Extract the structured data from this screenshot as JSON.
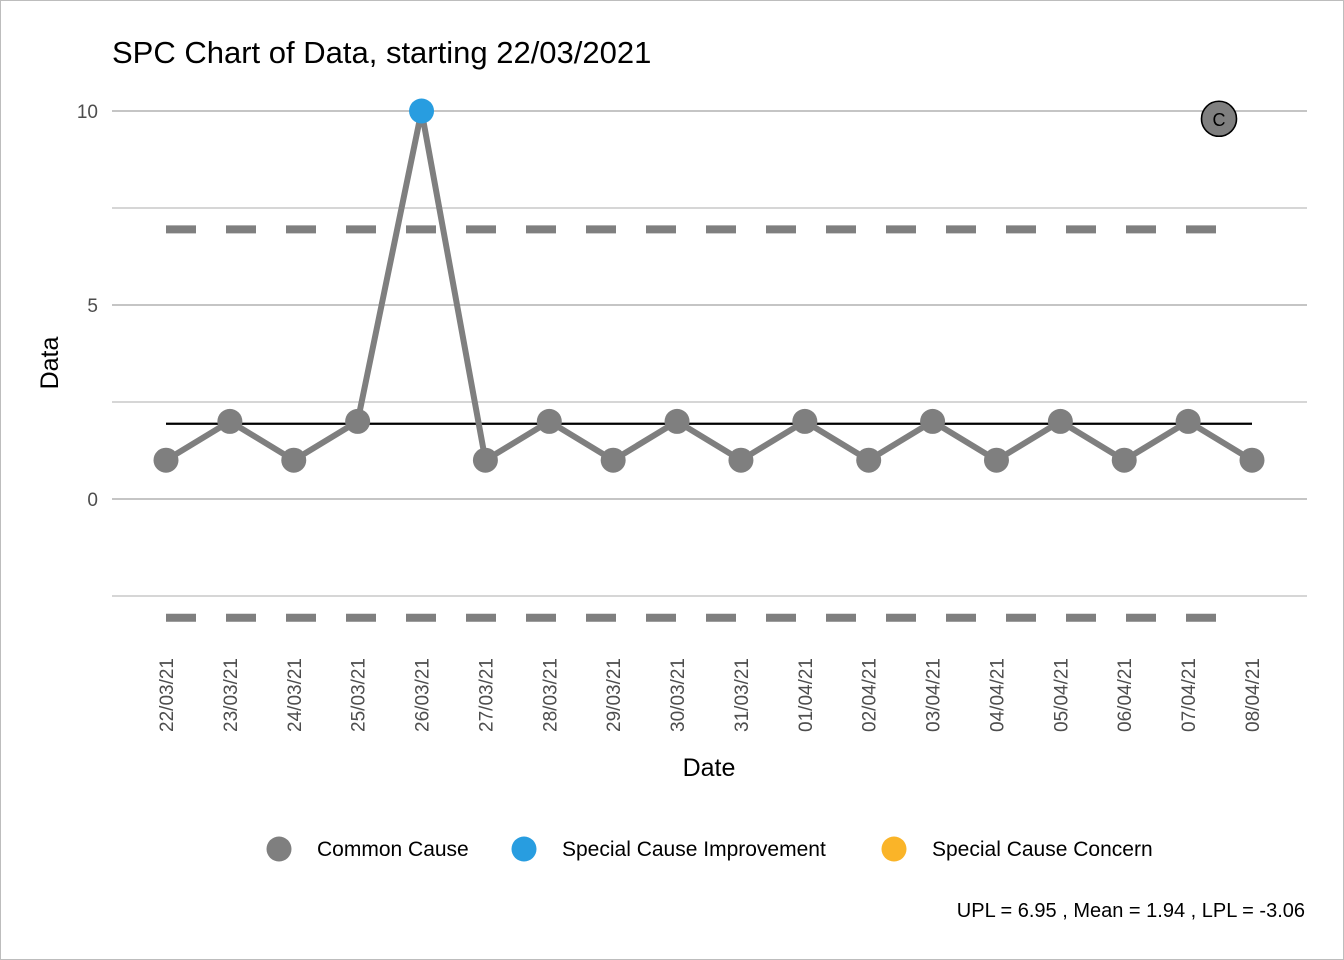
{
  "chart_data": {
    "type": "line",
    "title": "SPC Chart of Data, starting 22/03/2021",
    "xlabel": "Date",
    "ylabel": "Data",
    "ylim": [
      -3.6,
      10.6
    ],
    "yticks": [
      0,
      5,
      10
    ],
    "grid": true,
    "categories": [
      "22/03/21",
      "23/03/21",
      "24/03/21",
      "25/03/21",
      "26/03/21",
      "27/03/21",
      "28/03/21",
      "29/03/21",
      "30/03/21",
      "31/03/21",
      "01/04/21",
      "02/04/21",
      "03/04/21",
      "04/04/21",
      "05/04/21",
      "06/04/21",
      "07/04/21",
      "08/04/21"
    ],
    "values": [
      1,
      2,
      1,
      2,
      10,
      1,
      2,
      1,
      2,
      1,
      2,
      1,
      2,
      1,
      2,
      1,
      2,
      1
    ],
    "point_class": [
      "common",
      "common",
      "common",
      "common",
      "improvement",
      "common",
      "common",
      "common",
      "common",
      "common",
      "common",
      "common",
      "common",
      "common",
      "common",
      "common",
      "common",
      "common"
    ],
    "mean": 1.94,
    "upl": 6.95,
    "lpl": -3.06,
    "assurance_icon": {
      "letter": "C",
      "value": 9.8
    },
    "legend": {
      "position": "bottom",
      "items": [
        {
          "key": "common",
          "label": "Common Cause",
          "color": "#7f7f7f"
        },
        {
          "key": "improvement",
          "label": "Special Cause Improvement",
          "color": "#289de0"
        },
        {
          "key": "concern",
          "label": "Special Cause Concern",
          "color": "#fab428"
        }
      ]
    },
    "caption": "UPL =  6.95 , Mean =  1.94 , LPL =  -3.06",
    "colors": {
      "line": "#7f7f7f",
      "mean_line": "#000000",
      "limit_line": "#7f7f7f",
      "grid": "#bdbdbd"
    }
  }
}
